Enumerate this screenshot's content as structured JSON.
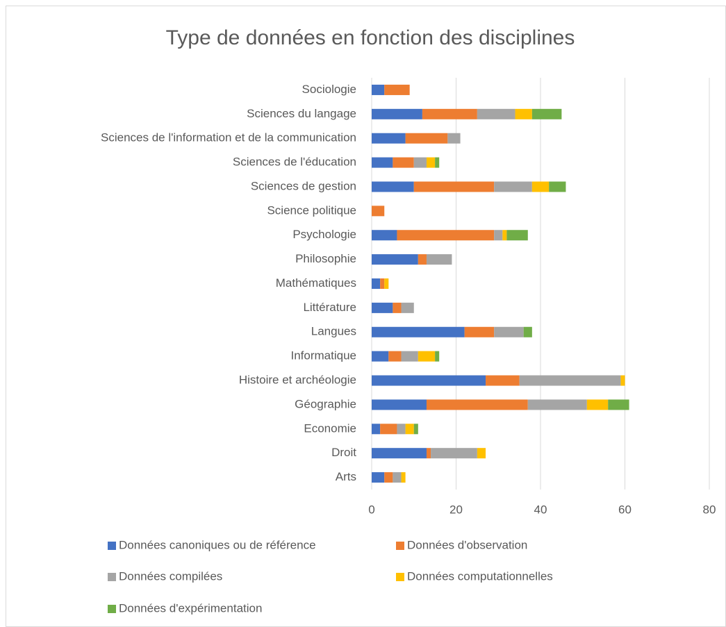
{
  "chart_data": {
    "type": "stacked_bar_horizontal",
    "title": "Type de données en fonction des disciplines",
    "categories": [
      "Arts",
      "Droit",
      "Economie",
      "Géographie",
      "Histoire et archéologie",
      "Informatique",
      "Langues",
      "Littérature",
      "Mathématiques",
      "Philosophie",
      "Psychologie",
      "Science politique",
      "Sciences de gestion",
      "Sciences de l'éducation",
      "Sciences de l'information et de la communication",
      "Sciences du langage",
      "Sociologie"
    ],
    "series": [
      {
        "name": "Données canoniques ou de référence",
        "color": "#4472c4",
        "values": [
          3,
          13,
          2,
          13,
          27,
          4,
          22,
          5,
          2,
          11,
          6,
          0,
          10,
          5,
          8,
          12,
          3
        ]
      },
      {
        "name": "Données d'observation",
        "color": "#ed7d31",
        "values": [
          2,
          1,
          4,
          24,
          8,
          3,
          7,
          2,
          1,
          2,
          23,
          3,
          19,
          5,
          10,
          13,
          6
        ]
      },
      {
        "name": "Données compilées",
        "color": "#a5a5a5",
        "values": [
          2,
          11,
          2,
          14,
          24,
          4,
          7,
          3,
          0,
          6,
          2,
          0,
          9,
          3,
          3,
          9,
          0
        ]
      },
      {
        "name": "Données computationnelles",
        "color": "#ffc000",
        "values": [
          1,
          2,
          2,
          5,
          1,
          4,
          0,
          0,
          1,
          0,
          1,
          0,
          4,
          2,
          0,
          4,
          0
        ]
      },
      {
        "name": "Données d'expérimentation",
        "color": "#70ad47",
        "values": [
          0,
          0,
          1,
          5,
          0,
          1,
          2,
          0,
          0,
          0,
          5,
          0,
          4,
          1,
          0,
          7,
          0
        ]
      }
    ],
    "xlim": [
      0,
      80
    ],
    "xticks": [
      0,
      20,
      40,
      60,
      80
    ],
    "grid": true
  }
}
